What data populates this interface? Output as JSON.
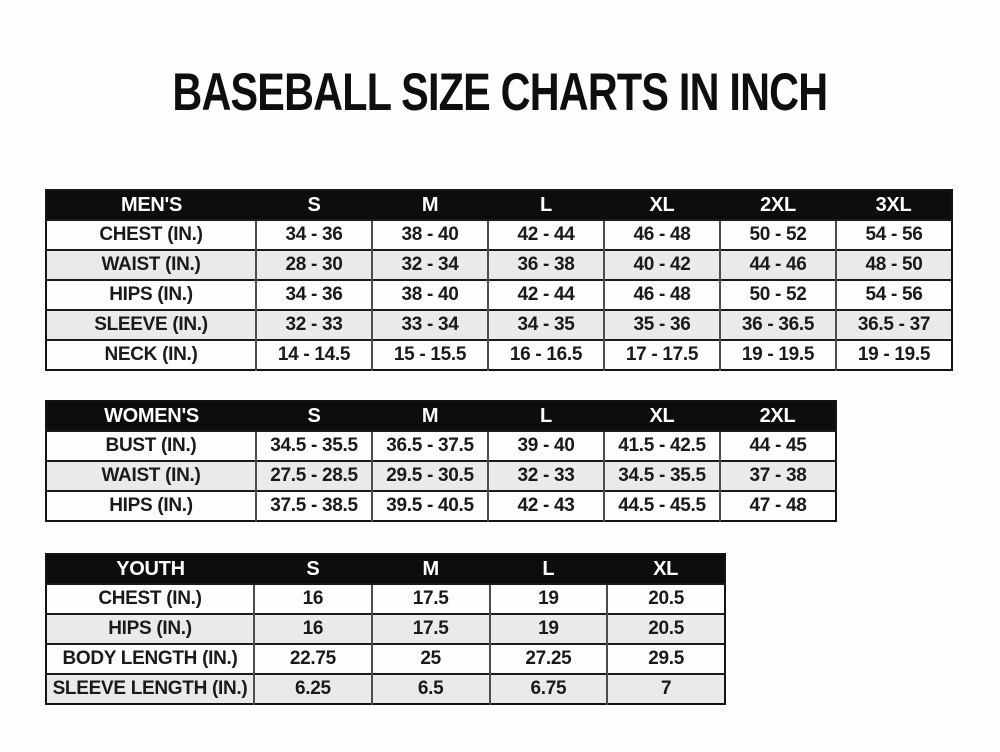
{
  "page": {
    "title": "BASEBALL SIZE CHARTS IN INCH"
  },
  "colors": {
    "header_bg": "#0d0d0d",
    "header_text": "#ffffff",
    "row_bg": "#fdfdfd",
    "row_alt_bg": "#eaeae8",
    "horizontal_grid": "#1b1b1b",
    "vertical_grid": "#4d4d4d",
    "text": "#1a1a1a",
    "page_bg": "#fefefe"
  },
  "chart_data": [
    {
      "type": "table",
      "title": "MEN'S",
      "columns": [
        "S",
        "M",
        "L",
        "XL",
        "2XL",
        "3XL"
      ],
      "rows": [
        {
          "label": "CHEST (IN.)",
          "values": [
            "34 - 36",
            "38 - 40",
            "42 - 44",
            "46 - 48",
            "50 - 52",
            "54 - 56"
          ]
        },
        {
          "label": "WAIST (IN.)",
          "values": [
            "28 - 30",
            "32 - 34",
            "36 - 38",
            "40 - 42",
            "44 - 46",
            "48 - 50"
          ]
        },
        {
          "label": "HIPS (IN.)",
          "values": [
            "34 - 36",
            "38 - 40",
            "42 - 44",
            "46 - 48",
            "50 - 52",
            "54 - 56"
          ]
        },
        {
          "label": "SLEEVE (IN.)",
          "values": [
            "32 - 33",
            "33 - 34",
            "34 - 35",
            "35 - 36",
            "36 - 36.5",
            "36.5 - 37"
          ]
        },
        {
          "label": "NECK (IN.)",
          "values": [
            "14 - 14.5",
            "15 - 15.5",
            "16 - 16.5",
            "17 - 17.5",
            "19 - 19.5",
            "19 - 19.5"
          ]
        }
      ]
    },
    {
      "type": "table",
      "title": "WOMEN'S",
      "columns": [
        "S",
        "M",
        "L",
        "XL",
        "2XL"
      ],
      "rows": [
        {
          "label": "BUST (IN.)",
          "values": [
            "34.5 - 35.5",
            "36.5 - 37.5",
            "39 - 40",
            "41.5 - 42.5",
            "44 - 45"
          ]
        },
        {
          "label": "WAIST (IN.)",
          "values": [
            "27.5 - 28.5",
            "29.5 - 30.5",
            "32 - 33",
            "34.5 - 35.5",
            "37 - 38"
          ]
        },
        {
          "label": "HIPS (IN.)",
          "values": [
            "37.5 - 38.5",
            "39.5 - 40.5",
            "42 - 43",
            "44.5 - 45.5",
            "47 - 48"
          ]
        }
      ]
    },
    {
      "type": "table",
      "title": "YOUTH",
      "columns": [
        "S",
        "M",
        "L",
        "XL"
      ],
      "rows": [
        {
          "label": "CHEST (IN.)",
          "values": [
            "16",
            "17.5",
            "19",
            "20.5"
          ]
        },
        {
          "label": "HIPS (IN.)",
          "values": [
            "16",
            "17.5",
            "19",
            "20.5"
          ]
        },
        {
          "label": "BODY LENGTH (IN.)",
          "values": [
            "22.75",
            "25",
            "27.25",
            "29.5"
          ]
        },
        {
          "label": "SLEEVE LENGTH (IN.)",
          "values": [
            "6.25",
            "6.5",
            "6.75",
            "7"
          ]
        }
      ]
    }
  ]
}
